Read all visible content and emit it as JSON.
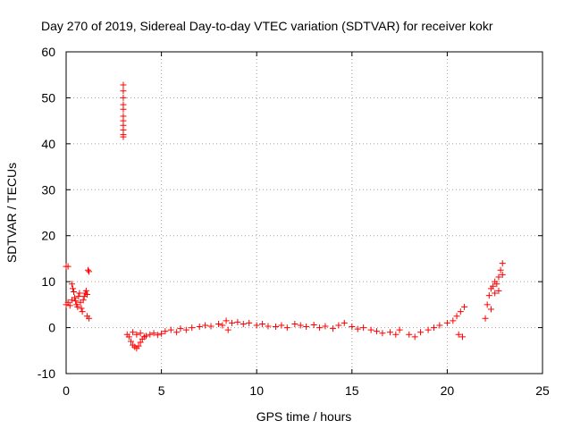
{
  "chart_data": {
    "type": "scatter",
    "title": "Day 270 of 2019, Sidereal Day-to-day VTEC variation (SDTVAR) for receiver kokr",
    "xlabel": "GPS time / hours",
    "ylabel": "SDTVAR / TECUs",
    "xlim": [
      0,
      25
    ],
    "ylim": [
      -10,
      60
    ],
    "xticks": [
      0,
      5,
      10,
      15,
      20,
      25
    ],
    "yticks": [
      -10,
      0,
      10,
      20,
      30,
      40,
      50,
      60
    ],
    "grid": true,
    "marker": "+",
    "color": "#ff0000",
    "series": [
      {
        "name": "SDTVAR",
        "points": [
          [
            0.0,
            13.3
          ],
          [
            0.1,
            13.3
          ],
          [
            0.0,
            5.0
          ],
          [
            0.1,
            5.5
          ],
          [
            0.2,
            4.8
          ],
          [
            0.3,
            6.0
          ],
          [
            0.3,
            9.5
          ],
          [
            0.35,
            8.5
          ],
          [
            0.4,
            7.8
          ],
          [
            0.45,
            6.5
          ],
          [
            0.5,
            5.8
          ],
          [
            0.55,
            5.0
          ],
          [
            0.6,
            4.5
          ],
          [
            0.65,
            6.8
          ],
          [
            0.7,
            7.5
          ],
          [
            0.75,
            5.5
          ],
          [
            0.8,
            4.2
          ],
          [
            0.85,
            3.5
          ],
          [
            0.9,
            6.0
          ],
          [
            0.95,
            6.8
          ],
          [
            1.0,
            7.5
          ],
          [
            1.05,
            8.0
          ],
          [
            1.1,
            7.2
          ],
          [
            1.1,
            2.5
          ],
          [
            1.2,
            2.0
          ],
          [
            1.15,
            12.5
          ],
          [
            1.2,
            12.2
          ],
          [
            3.0,
            52.8
          ],
          [
            3.0,
            51.5
          ],
          [
            3.0,
            50.0
          ],
          [
            3.0,
            48.5
          ],
          [
            3.0,
            47.5
          ],
          [
            3.0,
            46.0
          ],
          [
            3.0,
            45.0
          ],
          [
            3.0,
            44.0
          ],
          [
            3.0,
            43.0
          ],
          [
            3.0,
            42.0
          ],
          [
            3.0,
            41.5
          ],
          [
            3.2,
            -1.5
          ],
          [
            3.3,
            -2.0
          ],
          [
            3.4,
            -3.0
          ],
          [
            3.5,
            -3.8
          ],
          [
            3.6,
            -4.2
          ],
          [
            3.7,
            -4.5
          ],
          [
            3.8,
            -4.0
          ],
          [
            3.9,
            -3.2
          ],
          [
            4.0,
            -2.5
          ],
          [
            4.1,
            -2.0
          ],
          [
            3.5,
            -1.0
          ],
          [
            3.7,
            -1.5
          ],
          [
            3.9,
            -1.2
          ],
          [
            4.2,
            -1.8
          ],
          [
            4.4,
            -1.5
          ],
          [
            4.6,
            -1.2
          ],
          [
            4.8,
            -1.6
          ],
          [
            5.0,
            -1.3
          ],
          [
            5.2,
            -0.8
          ],
          [
            5.5,
            -0.5
          ],
          [
            5.8,
            -1.0
          ],
          [
            6.0,
            -0.2
          ],
          [
            6.3,
            -0.5
          ],
          [
            6.6,
            0.0
          ],
          [
            7.0,
            0.2
          ],
          [
            7.3,
            0.5
          ],
          [
            7.6,
            0.3
          ],
          [
            8.0,
            0.8
          ],
          [
            8.2,
            0.5
          ],
          [
            8.4,
            1.5
          ],
          [
            8.5,
            -0.5
          ],
          [
            8.7,
            1.0
          ],
          [
            9.0,
            1.2
          ],
          [
            9.3,
            0.8
          ],
          [
            9.6,
            1.0
          ],
          [
            10.0,
            0.5
          ],
          [
            10.3,
            0.8
          ],
          [
            10.6,
            0.3
          ],
          [
            11.0,
            0.2
          ],
          [
            11.3,
            0.5
          ],
          [
            11.6,
            0.0
          ],
          [
            12.0,
            0.8
          ],
          [
            12.3,
            0.5
          ],
          [
            12.6,
            0.2
          ],
          [
            13.0,
            0.6
          ],
          [
            13.3,
            0.0
          ],
          [
            13.6,
            0.3
          ],
          [
            14.0,
            -0.2
          ],
          [
            14.3,
            0.5
          ],
          [
            14.6,
            1.0
          ],
          [
            15.0,
            0.2
          ],
          [
            15.3,
            -0.3
          ],
          [
            15.6,
            0.0
          ],
          [
            16.0,
            -0.5
          ],
          [
            16.3,
            -0.8
          ],
          [
            16.6,
            -1.2
          ],
          [
            17.0,
            -1.0
          ],
          [
            17.3,
            -1.5
          ],
          [
            17.5,
            -0.5
          ],
          [
            18.0,
            -1.5
          ],
          [
            18.3,
            -2.0
          ],
          [
            18.6,
            -1.0
          ],
          [
            19.0,
            -0.5
          ],
          [
            19.3,
            0.0
          ],
          [
            19.6,
            0.5
          ],
          [
            20.0,
            1.0
          ],
          [
            20.3,
            1.5
          ],
          [
            20.5,
            2.5
          ],
          [
            20.7,
            3.5
          ],
          [
            20.9,
            4.5
          ],
          [
            20.6,
            -1.5
          ],
          [
            20.8,
            -2.0
          ],
          [
            22.0,
            2.0
          ],
          [
            22.1,
            5.0
          ],
          [
            22.2,
            7.0
          ],
          [
            22.3,
            8.5
          ],
          [
            22.4,
            9.0
          ],
          [
            22.5,
            10.0
          ],
          [
            22.6,
            9.5
          ],
          [
            22.7,
            11.0
          ],
          [
            22.8,
            12.5
          ],
          [
            22.9,
            14.0
          ],
          [
            22.3,
            4.0
          ],
          [
            22.5,
            7.5
          ],
          [
            22.7,
            8.0
          ],
          [
            22.9,
            11.5
          ]
        ]
      }
    ]
  }
}
